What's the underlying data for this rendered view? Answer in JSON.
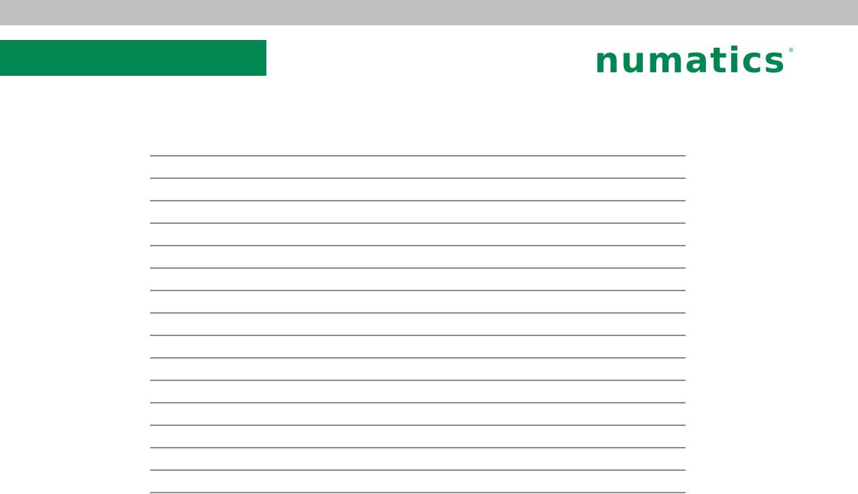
{
  "header": {
    "bar_color": "#bebfc1",
    "accent_color": "#028752",
    "logo": {
      "text": "numatics",
      "registered_mark": "®"
    }
  },
  "notes": {
    "line_count": 16,
    "line_color": "#8a8a8a"
  }
}
